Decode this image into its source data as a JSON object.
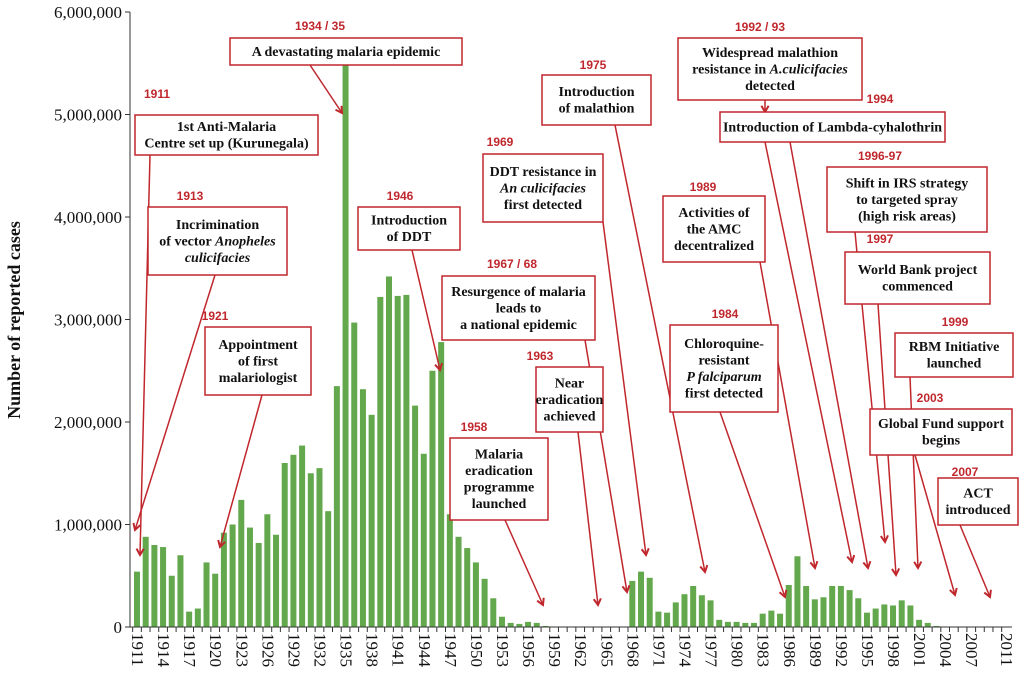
{
  "chart_data": {
    "type": "bar",
    "title": "",
    "xlabel": "",
    "ylabel": "Number of reported cases",
    "ylim": [
      0,
      6000000
    ],
    "yticks": [
      "0",
      "1,000,000",
      "2,000,000",
      "3,000,000",
      "4,000,000",
      "5,000,000",
      "6,000,000"
    ],
    "xtick_labels": [
      "1911",
      "1914",
      "1917",
      "1920",
      "1923",
      "1926",
      "1929",
      "1932",
      "1935",
      "1938",
      "1941",
      "1944",
      "1947",
      "1950",
      "1953",
      "1956",
      "1959",
      "1962",
      "1965",
      "1968",
      "1971",
      "1974",
      "1977",
      "1980",
      "1983",
      "1986",
      "1989",
      "1992",
      "1995",
      "1998",
      "2001",
      "2004",
      "2007",
      "2011"
    ],
    "x_start": 1911,
    "x_end": 2011,
    "bar_color": "#63a84c",
    "annotation_color": "#c0272d",
    "values": [
      540000,
      880000,
      800000,
      780000,
      500000,
      700000,
      150000,
      180000,
      630000,
      520000,
      920000,
      1000000,
      1240000,
      970000,
      820000,
      1100000,
      900000,
      1600000,
      1680000,
      1770000,
      1500000,
      1550000,
      1130000,
      2350000,
      5500000,
      2970000,
      2320000,
      2070000,
      3220000,
      3420000,
      3230000,
      3240000,
      2160000,
      1690000,
      2500000,
      2780000,
      1100000,
      880000,
      770000,
      630000,
      470000,
      280000,
      100000,
      40000,
      30000,
      50000,
      40000,
      10000,
      5000,
      5000,
      5000,
      5000,
      5000,
      5000,
      5000,
      5000,
      5000,
      450000,
      540000,
      480000,
      150000,
      140000,
      240000,
      320000,
      400000,
      310000,
      260000,
      70000,
      50000,
      50000,
      40000,
      40000,
      130000,
      160000,
      130000,
      410000,
      690000,
      400000,
      270000,
      290000,
      400000,
      400000,
      360000,
      280000,
      140000,
      180000,
      220000,
      210000,
      260000,
      210000,
      70000,
      40000,
      10000,
      5000,
      5000,
      5000,
      5000,
      5000,
      5000,
      5000,
      5000
    ],
    "annotations": [
      {
        "year": "1911",
        "lines": [
          [
            [
              "1st Anti-Malaria",
              false
            ]
          ],
          [
            [
              "Centre set up (Kurunegala)",
              false
            ]
          ]
        ]
      },
      {
        "year": "1913",
        "lines": [
          [
            [
              "Incrimination",
              false
            ]
          ],
          [
            [
              "of vector ",
              false
            ],
            [
              "Anopheles",
              true
            ]
          ],
          [
            [
              "culicifacies",
              true
            ]
          ]
        ]
      },
      {
        "year": "1921",
        "lines": [
          [
            [
              "Appointment",
              false
            ]
          ],
          [
            [
              "of first",
              false
            ]
          ],
          [
            [
              "malariologist",
              false
            ]
          ]
        ]
      },
      {
        "year": "1934 / 35",
        "lines": [
          [
            [
              "A devastating malaria epidemic",
              false
            ]
          ]
        ]
      },
      {
        "year": "1946",
        "lines": [
          [
            [
              "Introduction",
              false
            ]
          ],
          [
            [
              "of  DDT",
              false
            ]
          ]
        ]
      },
      {
        "year": "1967 / 68",
        "lines": [
          [
            [
              "Resurgence of malaria",
              false
            ]
          ],
          [
            [
              "leads to",
              false
            ]
          ],
          [
            [
              "a national epidemic",
              false
            ]
          ]
        ]
      },
      {
        "year": "1963",
        "lines": [
          [
            [
              "Near",
              false
            ]
          ],
          [
            [
              "eradication",
              false
            ]
          ],
          [
            [
              "achieved",
              false
            ]
          ]
        ]
      },
      {
        "year": "1958",
        "lines": [
          [
            [
              "Malaria",
              false
            ]
          ],
          [
            [
              "eradication",
              false
            ]
          ],
          [
            [
              "programme",
              false
            ]
          ],
          [
            [
              "launched",
              false
            ]
          ]
        ]
      },
      {
        "year": "1969",
        "lines": [
          [
            [
              "DDT resistance in",
              false
            ]
          ],
          [
            [
              "An culicifacies",
              true
            ]
          ],
          [
            [
              "first detected",
              false
            ]
          ]
        ]
      },
      {
        "year": "1975",
        "lines": [
          [
            [
              "Introduction",
              false
            ]
          ],
          [
            [
              "of  malathion",
              false
            ]
          ]
        ]
      },
      {
        "year": "1989",
        "lines": [
          [
            [
              "Activities of",
              false
            ]
          ],
          [
            [
              "the AMC",
              false
            ]
          ],
          [
            [
              "decentralized",
              false
            ]
          ]
        ]
      },
      {
        "year": "1984",
        "lines": [
          [
            [
              "Chloroquine-",
              false
            ]
          ],
          [
            [
              "resistant",
              false
            ]
          ],
          [
            [
              "P falciparum",
              true
            ]
          ],
          [
            [
              "first detected",
              false
            ]
          ]
        ]
      },
      {
        "year": "1992 / 93",
        "lines": [
          [
            [
              "Widespread malathion",
              false
            ]
          ],
          [
            [
              "resistance in ",
              false
            ],
            [
              "A.culicifacies",
              true
            ]
          ],
          [
            [
              "detected",
              false
            ]
          ]
        ]
      },
      {
        "year": "1994",
        "lines": [
          [
            [
              "Introduction of Lambda-cyhalothrin",
              false
            ]
          ]
        ]
      },
      {
        "year": "1996-97",
        "lines": [
          [
            [
              "Shift in IRS strategy",
              false
            ]
          ],
          [
            [
              "to targeted spray",
              false
            ]
          ],
          [
            [
              "(high risk areas)",
              false
            ]
          ]
        ]
      },
      {
        "year": "1997",
        "lines": [
          [
            [
              "World Bank project",
              false
            ]
          ],
          [
            [
              "commenced",
              false
            ]
          ]
        ]
      },
      {
        "year": "1999",
        "lines": [
          [
            [
              "RBM Initiative",
              false
            ]
          ],
          [
            [
              "launched",
              false
            ]
          ]
        ]
      },
      {
        "year": "2003",
        "lines": [
          [
            [
              "Global Fund support",
              false
            ]
          ],
          [
            [
              "begins",
              false
            ]
          ]
        ]
      },
      {
        "year": "2007",
        "lines": [
          [
            [
              "ACT",
              false
            ]
          ],
          [
            [
              "introduced",
              false
            ]
          ]
        ]
      }
    ]
  }
}
